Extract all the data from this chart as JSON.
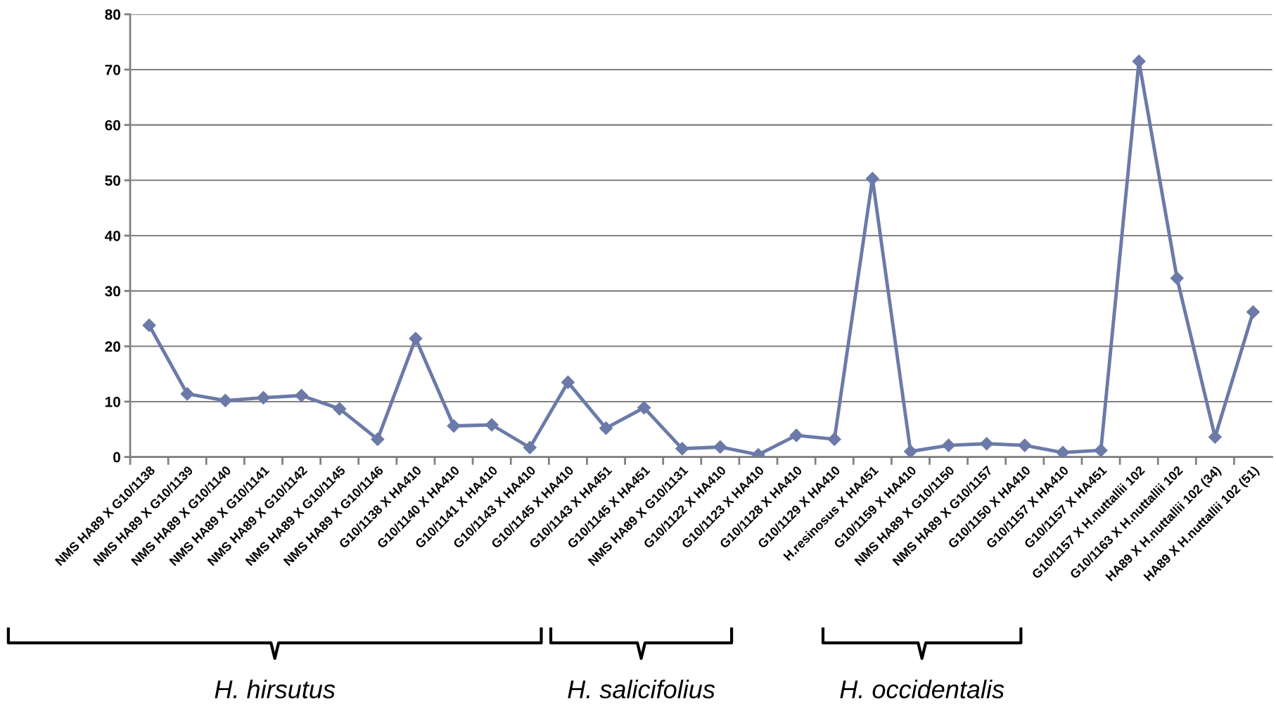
{
  "chart_data": {
    "type": "line",
    "categories": [
      "NMS HA89 X G10/1138",
      "NMS HA89 X G10/1139",
      "NMS HA89 X G10/1140",
      "NMS HA89 X G10/1141",
      "NMS HA89 X G10/1142",
      "NMS HA89 X G10/1145",
      "NMS HA89 X G10/1146",
      "G10/1138 X HA410",
      "G10/1140 X HA410",
      "G10/1141 X HA410",
      "G10/1143 X HA410",
      "G10/1145 X HA410",
      "G10/1143 X HA451",
      "G10/1145 X HA451",
      "NMS HA89 X G10/1131",
      "G10/1122 X HA410",
      "G10/1123 X HA410",
      "G10/1128 X HA410",
      "G10/1129 X HA410",
      "H.resinosus X HA451",
      "G10/1159 X HA410",
      "NMS HA89 X G10/1150",
      "NMS HA89 X G10/1157",
      "G10/1150 X HA410",
      "G10/1157 X HA410",
      "G10/1157 X HA451",
      "G10/1157 X H.nuttallii 102",
      "G10/1163 X H.nuttallii 102",
      "HA89 X H.nuttallii 102 (34)",
      "HA89 X H.nuttallii 102 (51)"
    ],
    "series": [
      {
        "color": "#6b7aa8",
        "values": [
          23.8,
          11.4,
          10.2,
          10.7,
          11.1,
          8.7,
          3.2,
          21.4,
          5.6,
          5.8,
          1.7,
          13.5,
          5.2,
          8.9,
          1.5,
          1.8,
          0.4,
          3.9,
          3.2,
          50.3,
          1.0,
          2.1,
          2.4,
          2.1,
          0.8,
          1.2,
          71.5,
          32.3,
          3.6,
          26.2
        ]
      }
    ],
    "ylim": [
      0,
      80
    ],
    "yticks": [
      0,
      10,
      20,
      30,
      40,
      50,
      60,
      70,
      80
    ],
    "grid": "y",
    "legend": false,
    "marker": "diamond",
    "line_style": "solid",
    "annotations": [
      "H. hirsutus",
      "H. salicifolius",
      "H. occidentalis"
    ]
  }
}
